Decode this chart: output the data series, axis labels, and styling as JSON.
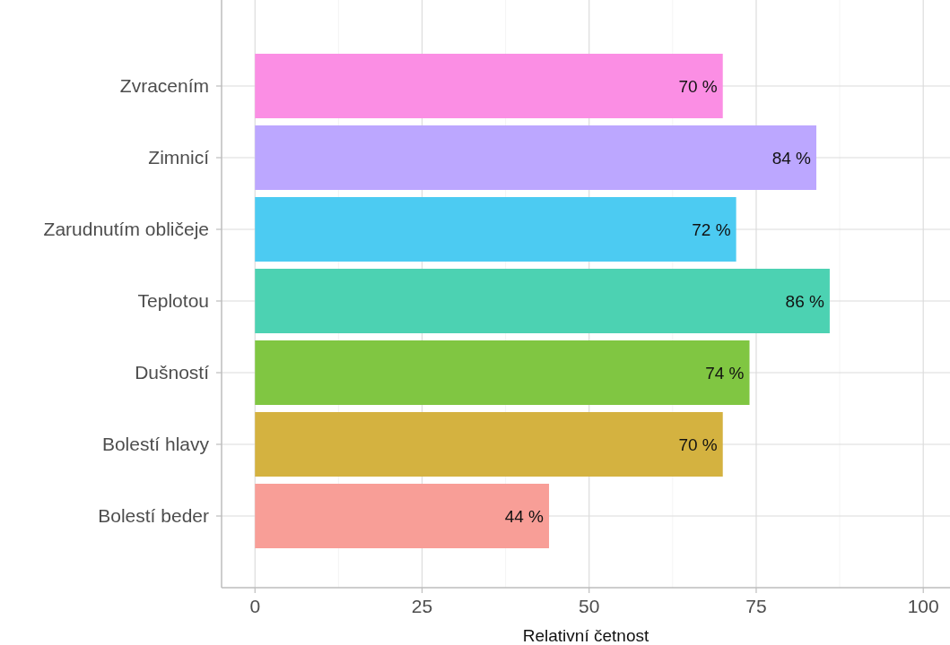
{
  "chart_data": {
    "type": "bar",
    "orientation": "horizontal",
    "xlabel": "Relativní četnost",
    "categories": [
      "Zvracením",
      "Zimnicí",
      "Zarudnutím obličeje",
      "Teplotou",
      "Dušností",
      "Bolestí hlavy",
      "Bolestí beder"
    ],
    "values": [
      70,
      84,
      72,
      86,
      74,
      70,
      44
    ],
    "colors": [
      "#fb8ee4",
      "#bca7ff",
      "#4ccbf2",
      "#4cd2b2",
      "#80c642",
      "#d4b240",
      "#f89e97"
    ],
    "value_labels": [
      "70 %",
      "84 %",
      "72 %",
      "86 %",
      "74 %",
      "70 %",
      "44 %"
    ],
    "xlim": [
      -5,
      104
    ],
    "xticks": [
      0,
      25,
      50,
      75,
      100
    ],
    "grid": true
  }
}
